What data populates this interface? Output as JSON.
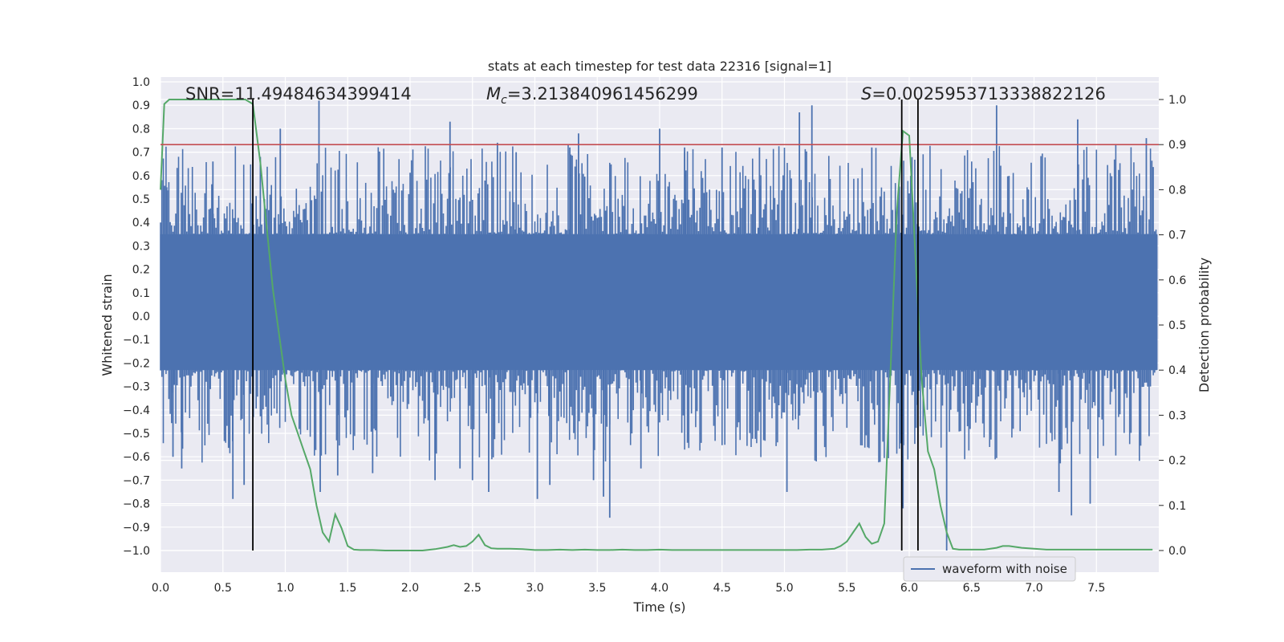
{
  "chart_data": {
    "type": "line",
    "title": "stats at each timestep for test data 22316 [signal=1]",
    "xlabel": "Time (s)",
    "ylabel": "Whitened strain",
    "y2label": "Detection probability",
    "xlim": [
      0.0,
      8.0
    ],
    "ylim": [
      -1.1,
      1.0
    ],
    "y2lim": [
      -0.05,
      1.04
    ],
    "x_ticks": [
      0.0,
      0.5,
      1.0,
      1.5,
      2.0,
      2.5,
      3.0,
      3.5,
      4.0,
      4.5,
      5.0,
      5.5,
      6.0,
      6.5,
      7.0,
      7.5
    ],
    "x_tick_labels": [
      "0.0",
      "0.5",
      "1.0",
      "1.5",
      "2.0",
      "2.5",
      "3.0",
      "3.5",
      "4.0",
      "4.5",
      "5.0",
      "5.5",
      "6.0",
      "6.5",
      "7.0",
      "7.5"
    ],
    "y_ticks": [
      1.0,
      0.9,
      0.8,
      0.7,
      0.6,
      0.5,
      0.4,
      0.3,
      0.2,
      0.1,
      0.0,
      -0.1,
      -0.2,
      -0.3,
      -0.4,
      -0.5,
      -0.6,
      -0.7,
      -0.8,
      -0.9,
      -1.0
    ],
    "y_tick_labels": [
      "1.0",
      "0.9",
      "0.8",
      "0.7",
      "0.6",
      "0.5",
      "0.4",
      "0.3",
      "0.2",
      "0.1",
      "0.0",
      "−0.1",
      "−0.2",
      "−0.3",
      "−0.4",
      "−0.5",
      "−0.6",
      "−0.7",
      "−0.8",
      "−0.9",
      "−1.0"
    ],
    "y2_ticks": [
      1.0,
      0.9,
      0.8,
      0.7,
      0.6,
      0.5,
      0.4,
      0.3,
      0.2,
      0.1,
      0.0
    ],
    "y2_tick_labels": [
      "1.0",
      "0.9",
      "0.8",
      "0.7",
      "0.6",
      "0.5",
      "0.4",
      "0.3",
      "0.2",
      "0.1",
      "0.0"
    ],
    "annotations": {
      "snr": "SNR=11.49484634399414",
      "mc_symbol": "M",
      "mc_subscript": "c",
      "mc_value": "=3.213840961456299",
      "s_symbol": "S",
      "s_value": "=0.0025953713338822126"
    },
    "vertical_lines_x": [
      0.74,
      5.94,
      6.07
    ],
    "threshold_y2": 0.9,
    "strain_series": {
      "name": "waveform with noise",
      "color": "#4c72b0",
      "samples_per_second": 90,
      "core_envelope": [
        -0.23,
        0.35
      ],
      "spikes": [
        {
          "x": 0.05,
          "y": 0.55
        },
        {
          "x": 0.1,
          "y": -0.6
        },
        {
          "x": 0.17,
          "y": -0.65
        },
        {
          "x": 0.42,
          "y": 0.66
        },
        {
          "x": 0.58,
          "y": -0.78
        },
        {
          "x": 0.67,
          "y": -0.72
        },
        {
          "x": 0.8,
          "y": 0.68
        },
        {
          "x": 0.96,
          "y": 0.8
        },
        {
          "x": 1.27,
          "y": 0.92
        },
        {
          "x": 1.28,
          "y": -0.75
        },
        {
          "x": 1.42,
          "y": -0.68
        },
        {
          "x": 1.7,
          "y": -0.67
        },
        {
          "x": 2.2,
          "y": -0.7
        },
        {
          "x": 2.32,
          "y": 0.83
        },
        {
          "x": 2.4,
          "y": -0.65
        },
        {
          "x": 2.5,
          "y": -0.7
        },
        {
          "x": 2.63,
          "y": -0.75
        },
        {
          "x": 2.7,
          "y": 0.74
        },
        {
          "x": 2.85,
          "y": 0.7
        },
        {
          "x": 3.02,
          "y": -0.78
        },
        {
          "x": 3.12,
          "y": -0.72
        },
        {
          "x": 3.28,
          "y": 0.72
        },
        {
          "x": 3.35,
          "y": 0.78
        },
        {
          "x": 3.47,
          "y": -0.7
        },
        {
          "x": 3.55,
          "y": -0.77
        },
        {
          "x": 3.6,
          "y": -0.86
        },
        {
          "x": 3.85,
          "y": -0.65
        },
        {
          "x": 4.0,
          "y": 0.8
        },
        {
          "x": 4.2,
          "y": 0.72
        },
        {
          "x": 4.5,
          "y": 0.72
        },
        {
          "x": 4.8,
          "y": 0.72
        },
        {
          "x": 5.02,
          "y": -0.75
        },
        {
          "x": 5.12,
          "y": 0.87
        },
        {
          "x": 5.22,
          "y": 0.9
        },
        {
          "x": 5.7,
          "y": 0.72
        },
        {
          "x": 5.95,
          "y": -0.82
        },
        {
          "x": 6.3,
          "y": -1.0
        },
        {
          "x": 6.7,
          "y": 0.9
        },
        {
          "x": 7.2,
          "y": -0.75
        },
        {
          "x": 7.3,
          "y": -0.85
        },
        {
          "x": 7.35,
          "y": 0.84
        },
        {
          "x": 7.45,
          "y": -0.8
        },
        {
          "x": 7.9,
          "y": 0.76
        }
      ]
    },
    "probability_series": {
      "name": "detection probability",
      "color": "#55a868",
      "x": [
        0.0,
        0.03,
        0.07,
        0.1,
        0.2,
        0.3,
        0.4,
        0.5,
        0.6,
        0.68,
        0.74,
        0.8,
        0.85,
        0.9,
        0.95,
        1.0,
        1.05,
        1.1,
        1.15,
        1.2,
        1.25,
        1.3,
        1.35,
        1.4,
        1.45,
        1.5,
        1.55,
        1.6,
        1.7,
        1.8,
        1.9,
        2.0,
        2.1,
        2.2,
        2.3,
        2.35,
        2.4,
        2.45,
        2.5,
        2.55,
        2.6,
        2.65,
        2.7,
        2.8,
        2.9,
        3.0,
        3.1,
        3.2,
        3.3,
        3.4,
        3.5,
        3.6,
        3.7,
        3.8,
        3.9,
        4.0,
        4.1,
        4.2,
        4.3,
        4.4,
        4.5,
        4.6,
        4.7,
        4.8,
        4.9,
        5.0,
        5.1,
        5.2,
        5.3,
        5.4,
        5.45,
        5.5,
        5.55,
        5.6,
        5.65,
        5.7,
        5.75,
        5.8,
        5.85,
        5.9,
        5.95,
        6.0,
        6.05,
        6.1,
        6.15,
        6.2,
        6.25,
        6.3,
        6.35,
        6.4,
        6.5,
        6.6,
        6.7,
        6.75,
        6.8,
        6.85,
        6.9,
        7.0,
        7.1,
        7.2,
        7.3,
        7.4,
        7.5,
        7.6,
        7.7,
        7.8,
        7.9,
        7.95
      ],
      "y": [
        0.8,
        0.99,
        1.0,
        1.0,
        1.0,
        1.0,
        1.0,
        1.0,
        1.0,
        1.0,
        0.99,
        0.86,
        0.72,
        0.58,
        0.48,
        0.38,
        0.3,
        0.26,
        0.22,
        0.18,
        0.1,
        0.04,
        0.02,
        0.08,
        0.05,
        0.01,
        0.002,
        0.001,
        0.001,
        0.0,
        0.0,
        0.0,
        0.0,
        0.003,
        0.008,
        0.012,
        0.008,
        0.01,
        0.02,
        0.035,
        0.012,
        0.005,
        0.004,
        0.004,
        0.003,
        0.001,
        0.001,
        0.002,
        0.001,
        0.002,
        0.001,
        0.001,
        0.002,
        0.001,
        0.001,
        0.002,
        0.001,
        0.001,
        0.001,
        0.001,
        0.001,
        0.001,
        0.001,
        0.001,
        0.001,
        0.001,
        0.001,
        0.002,
        0.002,
        0.004,
        0.01,
        0.02,
        0.04,
        0.06,
        0.03,
        0.015,
        0.02,
        0.06,
        0.4,
        0.75,
        0.93,
        0.92,
        0.65,
        0.38,
        0.22,
        0.18,
        0.1,
        0.04,
        0.004,
        0.002,
        0.002,
        0.002,
        0.006,
        0.01,
        0.01,
        0.008,
        0.006,
        0.004,
        0.002,
        0.002,
        0.002,
        0.002,
        0.002,
        0.002,
        0.002,
        0.002,
        0.002,
        0.002
      ]
    },
    "legend": {
      "entries": [
        "waveform with noise"
      ],
      "position": "lower-right"
    },
    "colors": {
      "panel": "#eaeaf2",
      "grid": "#ffffff",
      "threshold": "#c44e52",
      "vline": "#000000",
      "text": "#262626"
    }
  }
}
